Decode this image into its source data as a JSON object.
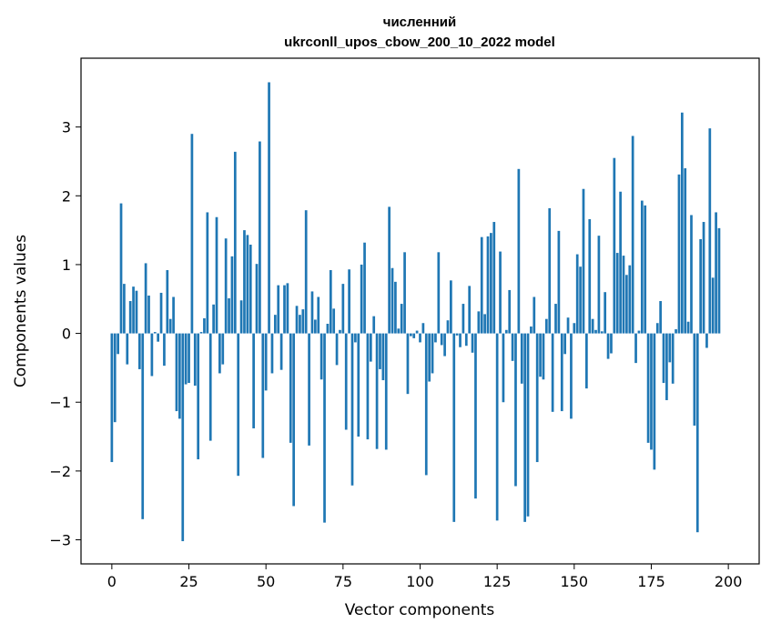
{
  "chart_data": {
    "type": "bar",
    "title": [
      "численний",
      "ukrconll_upos_cbow_200_10_2022 model"
    ],
    "xlabel": "Vector components",
    "ylabel": "Components values",
    "xlim": [
      -10,
      210
    ],
    "ylim": [
      -3.35,
      4.0
    ],
    "xticks": [
      0,
      25,
      50,
      75,
      100,
      125,
      150,
      175,
      200
    ],
    "yticks": [
      -3,
      -2,
      -1,
      0,
      1,
      2,
      3
    ],
    "ytick_labels": [
      "−3",
      "−2",
      "−1",
      "0",
      "1",
      "2",
      "3"
    ],
    "bar_color": "#1f77b4",
    "grid": false,
    "legend": "none",
    "values": [
      -1.87,
      -1.29,
      -0.3,
      1.89,
      0.72,
      -0.45,
      0.47,
      0.68,
      0.62,
      -0.52,
      -2.7,
      1.02,
      0.55,
      -0.62,
      0.02,
      -0.12,
      0.59,
      -0.47,
      0.92,
      0.21,
      0.53,
      -1.13,
      -1.24,
      -3.02,
      -0.74,
      -0.72,
      2.9,
      -0.76,
      -1.83,
      0.02,
      0.22,
      1.76,
      -1.56,
      0.42,
      1.69,
      -0.58,
      -0.45,
      1.38,
      0.51,
      1.12,
      2.64,
      -2.07,
      0.48,
      1.5,
      1.43,
      1.29,
      -1.38,
      1.01,
      2.79,
      -1.81,
      -0.83,
      3.65,
      -0.58,
      0.27,
      0.7,
      -0.53,
      0.7,
      0.73,
      -1.59,
      -2.51,
      0.4,
      0.27,
      0.35,
      1.79,
      -1.63,
      0.61,
      0.2,
      0.53,
      -0.67,
      -2.75,
      0.14,
      0.92,
      0.36,
      -0.46,
      0.05,
      0.72,
      -1.4,
      0.93,
      -2.21,
      -0.13,
      -1.5,
      1.0,
      1.32,
      -1.54,
      -0.41,
      0.25,
      -1.68,
      -0.52,
      -0.68,
      -1.69,
      1.84,
      0.95,
      0.75,
      0.07,
      0.43,
      1.18,
      -0.88,
      -0.04,
      -0.07,
      0.04,
      -0.13,
      0.15,
      -2.06,
      -0.7,
      -0.58,
      -0.13,
      1.18,
      -0.17,
      -0.33,
      0.19,
      0.77,
      -2.74,
      -0.03,
      -0.2,
      0.43,
      -0.18,
      0.69,
      -0.28,
      -2.4,
      0.32,
      1.4,
      0.28,
      1.41,
      1.46,
      1.62,
      -2.72,
      1.19,
      -1.0,
      0.05,
      0.63,
      -0.4,
      -2.22,
      2.39,
      -0.73,
      -2.74,
      -2.66,
      0.1,
      0.53,
      -1.87,
      -0.63,
      -0.67,
      0.21,
      1.82,
      -1.14,
      0.43,
      1.49,
      -1.13,
      -0.3,
      0.23,
      -1.24,
      0.15,
      1.15,
      0.97,
      2.1,
      -0.8,
      1.66,
      0.21,
      0.05,
      1.42,
      0.03,
      0.6,
      -0.37,
      -0.29,
      2.55,
      1.17,
      2.06,
      1.13,
      0.85,
      0.99,
      2.87,
      -0.43,
      0.04,
      1.93,
      1.86,
      -1.59,
      -1.69,
      -1.98,
      0.15,
      0.47,
      -0.72,
      -0.97,
      -0.42,
      -0.73,
      0.06,
      2.31,
      3.21,
      2.4,
      0.17,
      1.72,
      -1.34,
      -2.89,
      1.37,
      1.62,
      -0.21,
      2.98,
      0.81,
      1.76,
      1.53
    ]
  }
}
